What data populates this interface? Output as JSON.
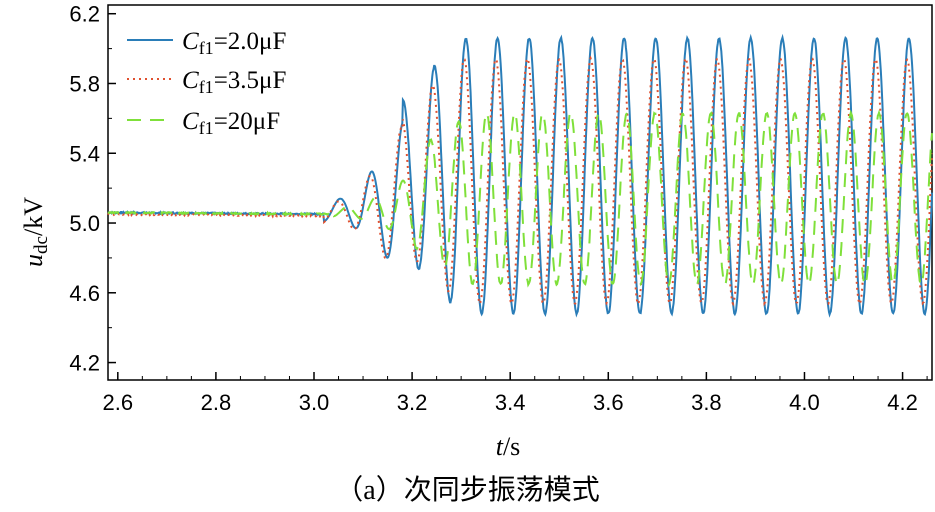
{
  "chart_data": {
    "type": "line",
    "title": "",
    "caption": "（a）次同步振荡模式",
    "xlabel": {
      "var": "t",
      "unit": "/s"
    },
    "ylabel": {
      "var": "u",
      "sub": "dc",
      "unit": "/kV"
    },
    "xlim": [
      2.58,
      4.26
    ],
    "ylim": [
      4.1,
      6.25
    ],
    "xticks": [
      "2.6",
      "2.8",
      "3.0",
      "3.2",
      "3.4",
      "3.6",
      "3.8",
      "4.0",
      "4.2"
    ],
    "xtick_values": [
      2.6,
      2.8,
      3.0,
      3.2,
      3.4,
      3.6,
      3.8,
      4.0,
      4.2
    ],
    "yticks": [
      "4.2",
      "4.6",
      "5.0",
      "5.4",
      "5.8",
      "6.2"
    ],
    "ytick_values": [
      4.2,
      4.6,
      5.0,
      5.4,
      5.8,
      6.2
    ],
    "legend_position": "top-left",
    "series": [
      {
        "name": "Cf1=2.0μF",
        "label_main": "C",
        "label_sub": "f1",
        "label_rest": "=2.0μF",
        "color": "#2a7db8",
        "style": "solid",
        "baseline": 5.06,
        "onset": 3.1,
        "freq_hz": 15.5,
        "center": 5.27,
        "amplitude": 0.79,
        "phase": 0.0
      },
      {
        "name": "Cf1=3.5μF",
        "label_main": "C",
        "label_sub": "f1",
        "label_rest": "=3.5μF",
        "color": "#e0502f",
        "style": "dotted",
        "baseline": 5.05,
        "onset": 3.1,
        "freq_hz": 15.5,
        "center": 5.24,
        "amplitude": 0.7,
        "phase": 0.35
      },
      {
        "name": "Cf1=20μF",
        "label_main": "C",
        "label_sub": "f1",
        "label_rest": "=20μF",
        "color": "#7fe03a",
        "style": "dashed",
        "baseline": 5.06,
        "onset": 3.12,
        "freq_hz": 17.5,
        "center": 5.14,
        "amplitude": 0.49,
        "phase": 1.2
      }
    ]
  }
}
